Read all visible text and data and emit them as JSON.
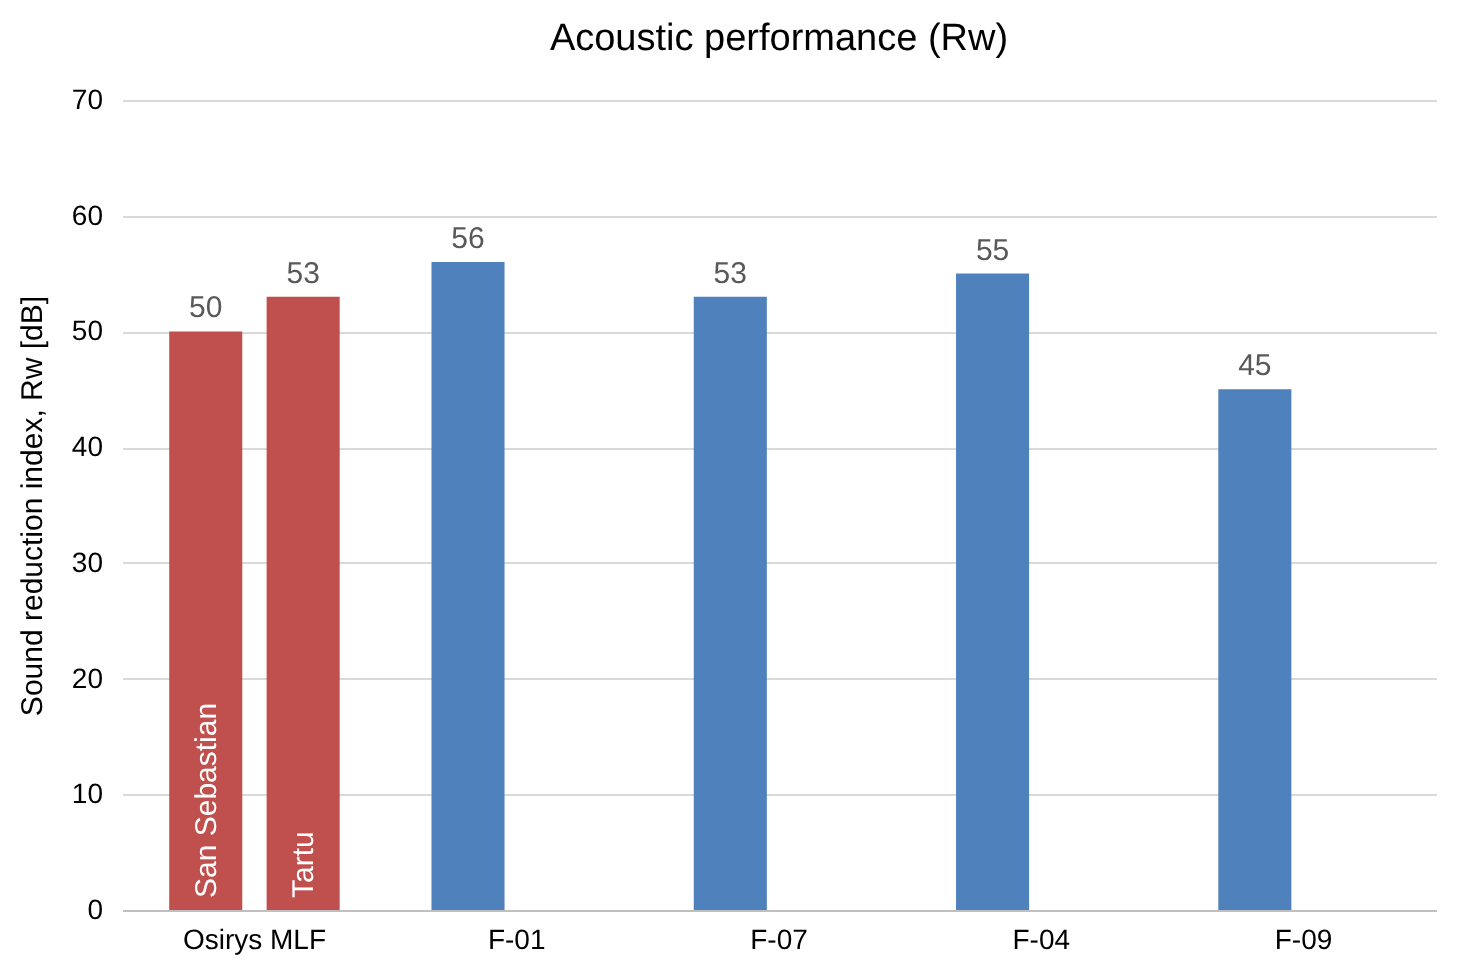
{
  "chart_data": {
    "type": "bar",
    "title": "Acoustic performance (Rw)",
    "ylabel": "Sound reduction index, Rw [dB]",
    "categories": [
      "Osirys MLF",
      "F-01",
      "F-07",
      "F-04",
      "F-09"
    ],
    "series": [
      {
        "name": "San Sebastian",
        "color": "#c0504d",
        "values": [
          50,
          null,
          null,
          null,
          null
        ]
      },
      {
        "name": "Tartu",
        "color": "#c0504d",
        "values": [
          53,
          null,
          null,
          null,
          null
        ]
      },
      {
        "color": "#4f81bd",
        "values": [
          null,
          56,
          53,
          55,
          45
        ]
      }
    ],
    "ylim": [
      0,
      70
    ],
    "yticks": [
      0,
      10,
      20,
      30,
      40,
      50,
      60,
      70
    ],
    "grid": "y",
    "legend": false,
    "data_labels": true
  }
}
